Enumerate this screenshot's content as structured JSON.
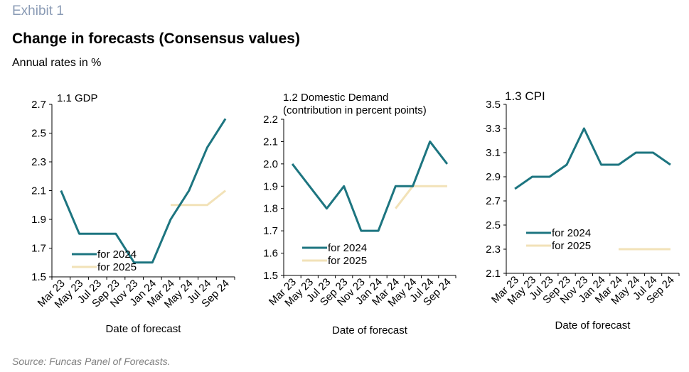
{
  "header": {
    "exhibit": "Exhibit 1",
    "title": "Change in forecasts (Consensus values)",
    "subtitle": "Annual rates in %"
  },
  "footer": {
    "source": "Source: Funcas Panel of Forecasts."
  },
  "colors": {
    "series_2024": "#1d7580",
    "series_2025": "#f2e2b8",
    "axis": "#000000"
  },
  "chart_data": [
    {
      "type": "line",
      "title": "1.1 GDP",
      "xlabel": "Date of forecast",
      "ylabel": "",
      "ylim": [
        1.5,
        2.7
      ],
      "yticks": [
        "1.5",
        "1.7",
        "1.9",
        "2.1",
        "2.3",
        "2.5",
        "2.7"
      ],
      "categories": [
        "Mar 23",
        "May 23",
        "Jul 23",
        "Sep 23",
        "Nov 23",
        "Jan 24",
        "Mar 24",
        "May 24",
        "Jul 24",
        "Sep 24"
      ],
      "series": [
        {
          "name": "for 2024",
          "values": [
            2.1,
            1.8,
            1.8,
            1.8,
            1.6,
            1.6,
            1.9,
            2.1,
            2.4,
            2.6
          ]
        },
        {
          "name": "for 2025",
          "values": [
            null,
            null,
            null,
            null,
            null,
            null,
            2.0,
            2.0,
            2.0,
            2.1
          ]
        }
      ]
    },
    {
      "type": "line",
      "title": "1.2 Domestic Demand",
      "subtitle": "(contribution in percent points)",
      "xlabel": "Date of forecast",
      "ylabel": "",
      "ylim": [
        1.5,
        2.2
      ],
      "yticks": [
        "1.5",
        "1.6",
        "1.7",
        "1.8",
        "1.9",
        "2.0",
        "2.1",
        "2.2"
      ],
      "categories": [
        "Mar 23",
        "May 23",
        "Jul 23",
        "Sep 23",
        "Nov 23",
        "Jan 24",
        "Mar 24",
        "May 24",
        "Jul 24",
        "Sep 24"
      ],
      "series": [
        {
          "name": "for 2024",
          "values": [
            2.0,
            1.9,
            1.8,
            1.9,
            1.7,
            1.7,
            1.9,
            1.9,
            2.1,
            2.0
          ]
        },
        {
          "name": "for 2025",
          "values": [
            null,
            null,
            null,
            null,
            null,
            null,
            1.8,
            1.9,
            1.9,
            1.9
          ]
        }
      ]
    },
    {
      "type": "line",
      "title": "1.3 CPI",
      "xlabel": "Date of forecast",
      "ylabel": "",
      "ylim": [
        2.1,
        3.5
      ],
      "yticks": [
        "2.1",
        "2.3",
        "2.5",
        "2.7",
        "2.9",
        "3.1",
        "3.3",
        "3.5"
      ],
      "categories": [
        "Mar 23",
        "May 23",
        "Jul 23",
        "Sep 23",
        "Nov 23",
        "Jan 24",
        "Mar 24",
        "May 24",
        "Jul 24",
        "Sep 24"
      ],
      "series": [
        {
          "name": "for 2024",
          "values": [
            2.8,
            2.9,
            2.9,
            3.0,
            3.3,
            3.0,
            3.0,
            3.1,
            3.1,
            3.0
          ]
        },
        {
          "name": "for 2025",
          "values": [
            null,
            null,
            null,
            null,
            null,
            null,
            2.3,
            2.3,
            2.3,
            2.3
          ]
        }
      ]
    }
  ]
}
